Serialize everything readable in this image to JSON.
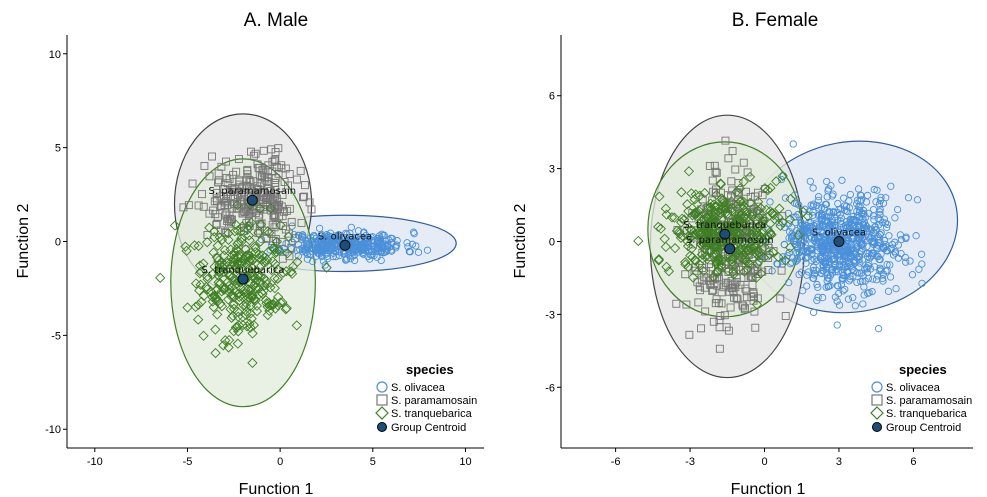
{
  "chart_data": [
    {
      "type": "scatter",
      "title": "A. Male",
      "xlabel": "Function 1",
      "ylabel": "Function 2",
      "xlim": [
        -11.5,
        11
      ],
      "ylim": [
        -11,
        11
      ],
      "xticks": [
        -10,
        -5,
        0,
        5,
        10
      ],
      "yticks": [
        -10,
        -5,
        0,
        5,
        10
      ],
      "grid": false,
      "legend": {
        "title": "species",
        "placement": "bottom-right",
        "entries": [
          "S. olivacea",
          "S. paramamosain",
          "S. tranquebarica",
          "Group Centroid"
        ]
      },
      "series": [
        {
          "name": "S. olivacea",
          "marker": "circle",
          "color": "#4a90d9",
          "center": [
            3.5,
            -0.2
          ],
          "spread": [
            1.6,
            0.35
          ],
          "n": 380,
          "seed": 11,
          "ellipse": {
            "cx": 3.5,
            "cy": -0.1,
            "rx": 6.0,
            "ry": 1.5,
            "angle": 0,
            "fill": "#dde6f1",
            "stroke": "#2f5d9c"
          }
        },
        {
          "name": "S. paramamosain",
          "marker": "square",
          "color": "#777777",
          "center": [
            -1.5,
            2.2
          ],
          "spread": [
            1.25,
            1.1
          ],
          "n": 260,
          "seed": 22,
          "ellipse": {
            "cx": -2.0,
            "cy": 2.0,
            "rx": 3.7,
            "ry": 4.8,
            "angle": 0,
            "fill": "#e4e4e4",
            "stroke": "#444444"
          }
        },
        {
          "name": "S. tranquebarica",
          "marker": "diamond",
          "color": "#3f7f24",
          "center": [
            -2.0,
            -2.0
          ],
          "spread": [
            1.25,
            1.45
          ],
          "n": 300,
          "seed": 33,
          "ellipse": {
            "cx": -2.0,
            "cy": -2.2,
            "rx": 3.9,
            "ry": 6.6,
            "angle": 0,
            "fill": "#e1ebdb",
            "stroke": "#3f7f24"
          }
        }
      ],
      "centroids": [
        {
          "label": "S. paramamosain",
          "x": -1.5,
          "y": 2.2
        },
        {
          "label": "S. olivacea",
          "x": 3.5,
          "y": -0.2
        },
        {
          "label": "S. tranquebarica",
          "x": -2.0,
          "y": -2.0
        }
      ]
    },
    {
      "type": "scatter",
      "title": "B. Female",
      "xlabel": "Function 1",
      "ylabel": "Function 2",
      "xlim": [
        -8.2,
        8.4
      ],
      "ylim": [
        -8.5,
        8.5
      ],
      "xticks": [
        -6,
        -3,
        0,
        3,
        6
      ],
      "yticks": [
        -6,
        -3,
        0,
        3,
        6
      ],
      "grid": false,
      "legend": {
        "title": "species",
        "placement": "bottom-right",
        "entries": [
          "S. olivacea",
          "S. paramamosain",
          "S. tranquebarica",
          "Group Centroid"
        ]
      },
      "series": [
        {
          "name": "S. olivacea",
          "marker": "circle",
          "color": "#4a90d9",
          "center": [
            3.0,
            0.0
          ],
          "spread": [
            1.25,
            1.05
          ],
          "n": 700,
          "seed": 44,
          "ellipse": {
            "cx": 3.5,
            "cy": 0.6,
            "rx": 4.3,
            "ry": 3.5,
            "angle": -10,
            "fill": "#dde6f1",
            "stroke": "#2f5d9c"
          }
        },
        {
          "name": "S. paramamosain",
          "marker": "square",
          "color": "#777777",
          "center": [
            -1.4,
            -0.3
          ],
          "spread": [
            0.85,
            1.55
          ],
          "n": 280,
          "seed": 55,
          "ellipse": {
            "cx": -1.5,
            "cy": -0.2,
            "rx": 3.1,
            "ry": 5.4,
            "angle": 0,
            "fill": "#e4e4e4",
            "stroke": "#444444"
          }
        },
        {
          "name": "S. tranquebarica",
          "marker": "diamond",
          "color": "#3f7f24",
          "center": [
            -1.6,
            0.3
          ],
          "spread": [
            1.1,
            0.9
          ],
          "n": 380,
          "seed": 66,
          "ellipse": {
            "cx": -1.6,
            "cy": 0.5,
            "rx": 3.1,
            "ry": 3.6,
            "angle": 0,
            "fill": "#e1ebdb",
            "stroke": "#3f7f24"
          }
        }
      ],
      "centroids": [
        {
          "label": "S. tranquebarica",
          "x": -1.6,
          "y": 0.3
        },
        {
          "label": "S. olivacea",
          "x": 3.0,
          "y": 0.0
        },
        {
          "label": "S. paramamosain",
          "x": -1.4,
          "y": -0.3
        }
      ]
    }
  ],
  "colors": {
    "centroid_fill": "#1b4f7a",
    "centroid_stroke": "#0a0a0a",
    "axis": "#000000"
  }
}
